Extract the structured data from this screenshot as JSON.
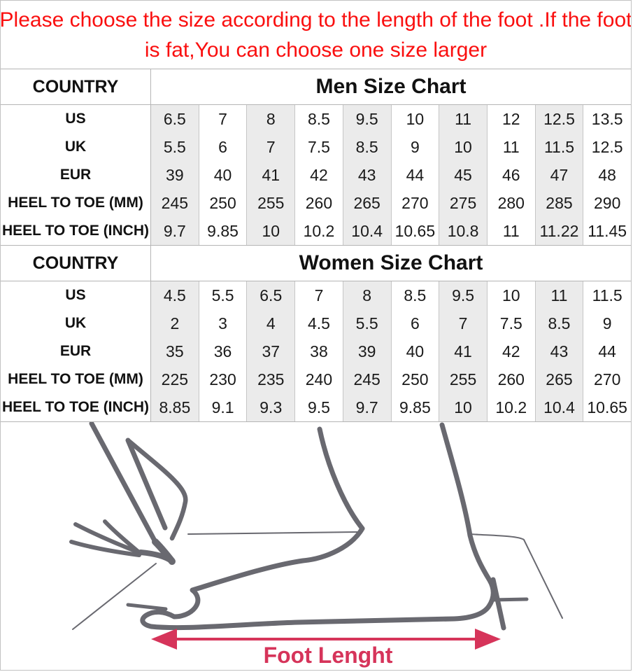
{
  "notice": {
    "line1": "Please choose the size according to the length of the foot .If the foot",
    "line2": "is fat,You can choose one size larger"
  },
  "chart_data": [
    {
      "type": "table",
      "title": "Men Size Chart",
      "corner_label": "COUNTRY",
      "rows": [
        {
          "label": "US",
          "values": [
            "6.5",
            "7",
            "8",
            "8.5",
            "9.5",
            "10",
            "11",
            "12",
            "12.5",
            "13.5"
          ]
        },
        {
          "label": "UK",
          "values": [
            "5.5",
            "6",
            "7",
            "7.5",
            "8.5",
            "9",
            "10",
            "11",
            "11.5",
            "12.5"
          ]
        },
        {
          "label": "EUR",
          "values": [
            "39",
            "40",
            "41",
            "42",
            "43",
            "44",
            "45",
            "46",
            "47",
            "48"
          ]
        },
        {
          "label": "HEEL TO TOE (MM)",
          "values": [
            "245",
            "250",
            "255",
            "260",
            "265",
            "270",
            "275",
            "280",
            "285",
            "290"
          ]
        },
        {
          "label": "HEEL TO TOE (INCH)",
          "values": [
            "9.7",
            "9.85",
            "10",
            "10.2",
            "10.4",
            "10.65",
            "10.8",
            "11",
            "11.22",
            "11.45"
          ]
        }
      ]
    },
    {
      "type": "table",
      "title": "Women Size Chart",
      "corner_label": "COUNTRY",
      "rows": [
        {
          "label": "US",
          "values": [
            "4.5",
            "5.5",
            "6.5",
            "7",
            "8",
            "8.5",
            "9.5",
            "10",
            "11",
            "11.5"
          ]
        },
        {
          "label": "UK",
          "values": [
            "2",
            "3",
            "4",
            "4.5",
            "5.5",
            "6",
            "7",
            "7.5",
            "8.5",
            "9"
          ]
        },
        {
          "label": "EUR",
          "values": [
            "35",
            "36",
            "37",
            "38",
            "39",
            "40",
            "41",
            "42",
            "43",
            "44"
          ]
        },
        {
          "label": "HEEL TO TOE (MM)",
          "values": [
            "225",
            "230",
            "235",
            "240",
            "245",
            "250",
            "255",
            "260",
            "265",
            "270"
          ]
        },
        {
          "label": "HEEL TO TOE (INCH)",
          "values": [
            "8.85",
            "9.1",
            "9.3",
            "9.5",
            "9.7",
            "9.85",
            "10",
            "10.2",
            "10.4",
            "10.65"
          ]
        }
      ]
    }
  ],
  "figure": {
    "caption": "Foot Lenght"
  },
  "colors": {
    "notice_red": "#fa0f0f",
    "caption_red": "#d6345a",
    "sketch_gray": "#696970",
    "cell_shade": "#ebebeb",
    "line_gray": "#b5b5b5",
    "cell_line": "#c6c6c6",
    "border_gray": "#c2c2c2"
  }
}
